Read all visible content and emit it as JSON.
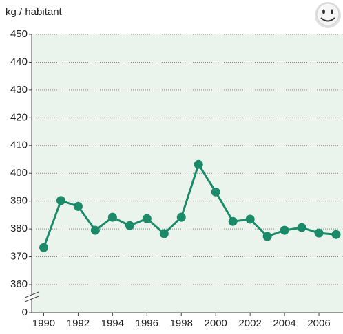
{
  "chart_data": {
    "type": "line",
    "y_axis_label": "kg / habitant",
    "x": [
      1990,
      1991,
      1992,
      1993,
      1994,
      1995,
      1996,
      1997,
      1998,
      1999,
      2000,
      2001,
      2002,
      2003,
      2004,
      2005,
      2006,
      2007
    ],
    "series": [
      {
        "color": "#1a8a68",
        "values": [
          373.3,
          390.2,
          388.1,
          379.5,
          384.2,
          381.2,
          383.7,
          378.3,
          384.2,
          403.2,
          393.3,
          382.7,
          383.5,
          377.3,
          379.5,
          380.5,
          378.5,
          378
        ]
      }
    ],
    "xlim": [
      1989.3,
      2007.4
    ],
    "xticks": [
      1990,
      1992,
      1994,
      1996,
      1998,
      2000,
      2002,
      2004,
      2006
    ],
    "ylim": [
      0,
      450
    ],
    "axis_break": [
      0,
      360
    ],
    "yticks": [
      0,
      360,
      370,
      380,
      390,
      400,
      410,
      420,
      430,
      440,
      450
    ],
    "grid": true,
    "background": "#eaf4ec"
  }
}
